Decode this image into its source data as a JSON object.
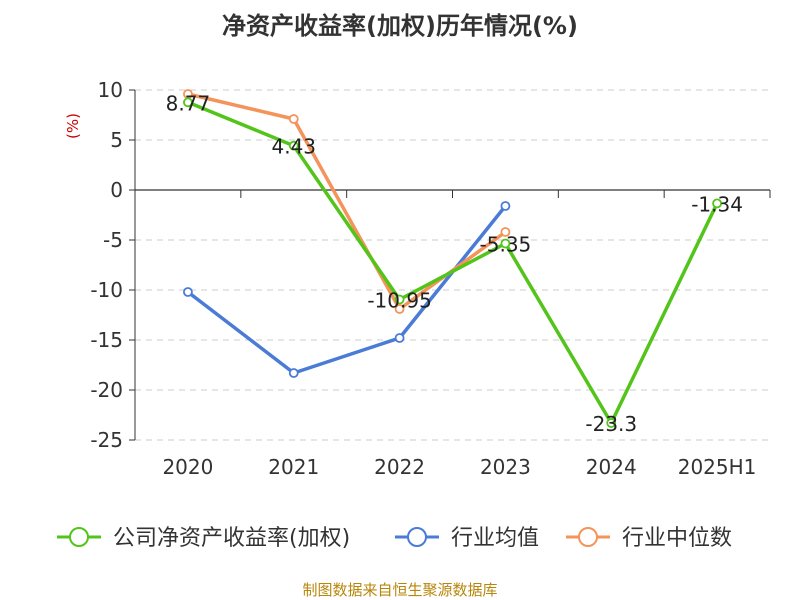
{
  "chart_data": {
    "type": "line",
    "title": "净资产收益率(加权)历年情况(%)",
    "ylabel": "(%)",
    "categories": [
      "2020",
      "2021",
      "2022",
      "2023",
      "2024",
      "2025H1"
    ],
    "ylim": [
      -25,
      10
    ],
    "yticks": [
      10,
      5,
      0,
      -5,
      -10,
      -15,
      -20,
      -25
    ],
    "grid": true,
    "legend_position": "bottom",
    "series": [
      {
        "name": "公司净资产收益率(加权)",
        "color": "#52c41a",
        "values": [
          8.77,
          4.43,
          -10.95,
          -5.35,
          -23.3,
          -1.34
        ],
        "labels": [
          "8.77",
          "4.43",
          "-10.95",
          "-5.35",
          "-23.3",
          "-1.34"
        ]
      },
      {
        "name": "行业均值",
        "color": "#4a7bd6",
        "values": [
          -10.2,
          -18.3,
          -14.8,
          -1.6,
          null,
          null
        ]
      },
      {
        "name": "行业中位数",
        "color": "#f4935a",
        "values": [
          9.6,
          7.1,
          -11.9,
          -4.2,
          null,
          null
        ]
      }
    ]
  },
  "source": "制图数据来自恒生聚源数据库"
}
